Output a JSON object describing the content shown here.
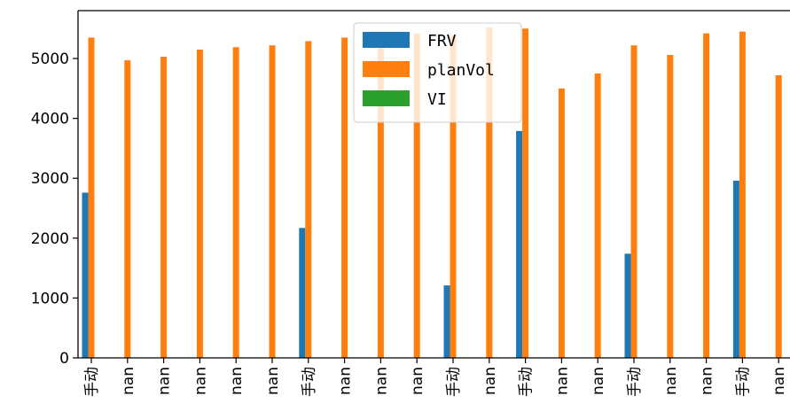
{
  "chart_data": {
    "type": "bar",
    "title": "",
    "xlabel": "",
    "ylabel": "",
    "ylim": [
      0,
      5800
    ],
    "yticks": [
      0,
      1000,
      2000,
      3000,
      4000,
      5000
    ],
    "grid": false,
    "legend_position": "top-center",
    "categories": [
      "手动",
      "nan",
      "nan",
      "nan",
      "nan",
      "nan",
      "手动",
      "nan",
      "nan",
      "nan",
      "手动",
      "nan",
      "手动",
      "nan",
      "nan",
      "手动",
      "nan",
      "nan",
      "手动",
      "nan"
    ],
    "series": [
      {
        "name": "FRV",
        "color": "#1f77b4",
        "values": [
          2760,
          0,
          0,
          0,
          0,
          0,
          2170,
          0,
          0,
          0,
          1210,
          0,
          3790,
          0,
          0,
          1740,
          0,
          0,
          2960,
          0
        ]
      },
      {
        "name": "planVol",
        "color": "#ff7f0e",
        "values": [
          5350,
          4970,
          5030,
          5150,
          5190,
          5220,
          5290,
          5350,
          5340,
          5420,
          5380,
          5520,
          5500,
          4500,
          4750,
          5220,
          5060,
          5420,
          5450,
          4720
        ]
      },
      {
        "name": "VI",
        "color": "#2ca02c",
        "values": [
          0,
          0,
          0,
          0,
          0,
          0,
          0,
          0,
          0,
          0,
          0,
          0,
          0,
          0,
          0,
          0,
          0,
          0,
          0,
          0
        ]
      }
    ]
  }
}
